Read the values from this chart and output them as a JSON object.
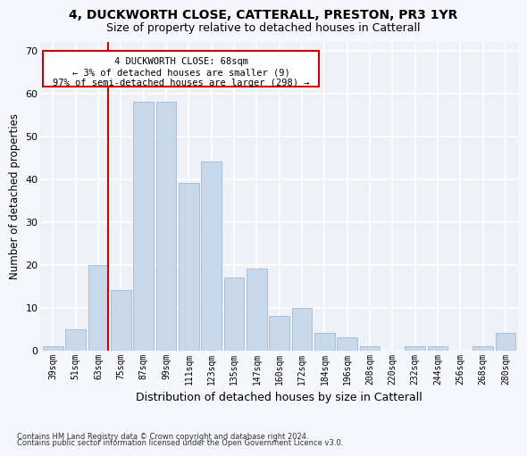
{
  "title1": "4, DUCKWORTH CLOSE, CATTERALL, PRESTON, PR3 1YR",
  "title2": "Size of property relative to detached houses in Catterall",
  "xlabel": "Distribution of detached houses by size in Catterall",
  "ylabel": "Number of detached properties",
  "categories": [
    "39sqm",
    "51sqm",
    "63sqm",
    "75sqm",
    "87sqm",
    "99sqm",
    "111sqm",
    "123sqm",
    "135sqm",
    "147sqm",
    "160sqm",
    "172sqm",
    "184sqm",
    "196sqm",
    "208sqm",
    "220sqm",
    "232sqm",
    "244sqm",
    "256sqm",
    "268sqm",
    "280sqm"
  ],
  "values": [
    1,
    5,
    20,
    14,
    58,
    58,
    39,
    44,
    17,
    19,
    8,
    10,
    4,
    3,
    1,
    0,
    1,
    1,
    0,
    1,
    4
  ],
  "bar_color": "#c8d8eb",
  "bar_edge_color": "#a8c0d8",
  "marker_line_color": "#cc0000",
  "annotation_line1": "4 DUCKWORTH CLOSE: 68sqm",
  "annotation_line2": "← 3% of detached houses are smaller (9)",
  "annotation_line3": "97% of semi-detached houses are larger (298) →",
  "annotation_box_color": "#ffffff",
  "annotation_box_edge_color": "#cc0000",
  "footer1": "Contains HM Land Registry data © Crown copyright and database right 2024.",
  "footer2": "Contains public sector information licensed under the Open Government Licence v3.0.",
  "ylim": [
    0,
    72
  ],
  "yticks": [
    0,
    10,
    20,
    30,
    40,
    50,
    60,
    70
  ],
  "bg_color": "#eef2f8",
  "grid_color": "#ffffff",
  "fig_bg_color": "#f5f7fc"
}
